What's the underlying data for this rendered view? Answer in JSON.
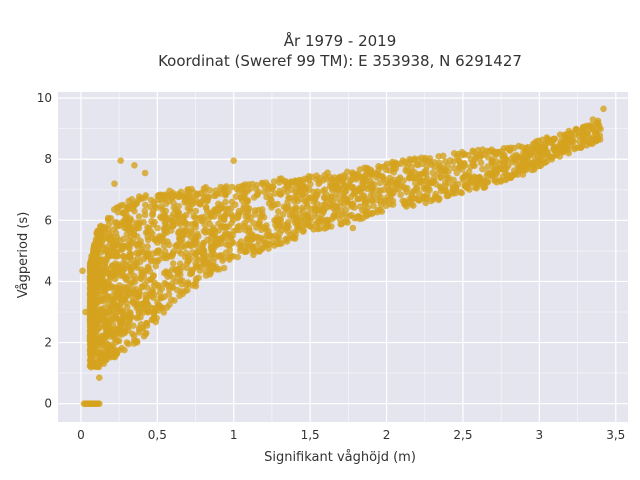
{
  "chart_data": {
    "type": "scatter",
    "title": "År 1979 - 2019",
    "subtitle": "Koordinat (Sweref 99 TM): E 353938, N 6291427",
    "xlabel": "Signifikant våghöjd (m)",
    "ylabel": "Vågperiod (s)",
    "xlim": [
      -0.15,
      3.58
    ],
    "ylim": [
      -0.6,
      10.2
    ],
    "x_ticks": [
      0,
      0.5,
      1,
      1.5,
      2,
      2.5,
      3,
      3.5
    ],
    "x_tick_labels": [
      "0",
      "0,5",
      "1",
      "1,5",
      "2",
      "2,5",
      "3",
      "3,5"
    ],
    "y_ticks": [
      0,
      2,
      4,
      6,
      8,
      10
    ],
    "y_tick_labels": [
      "0",
      "2",
      "4",
      "6",
      "8",
      "10"
    ],
    "grid": true,
    "legend": "none",
    "colors": {
      "background": "#e5e5ef",
      "marker": "#d4a31e",
      "grid": "#ffffff"
    },
    "point_cloud": {
      "envelope": [
        {
          "x": 0.06,
          "lower": 1.2,
          "upper": 4.6
        },
        {
          "x": 0.1,
          "lower": 1.1,
          "upper": 5.6
        },
        {
          "x": 0.2,
          "lower": 1.4,
          "upper": 6.4
        },
        {
          "x": 0.3,
          "lower": 1.8,
          "upper": 6.7
        },
        {
          "x": 0.4,
          "lower": 2.1,
          "upper": 6.8
        },
        {
          "x": 0.5,
          "lower": 2.7,
          "upper": 6.9
        },
        {
          "x": 0.6,
          "lower": 3.3,
          "upper": 7.0
        },
        {
          "x": 0.8,
          "lower": 4.0,
          "upper": 7.1
        },
        {
          "x": 1.0,
          "lower": 4.6,
          "upper": 7.2
        },
        {
          "x": 1.2,
          "lower": 5.0,
          "upper": 7.3
        },
        {
          "x": 1.5,
          "lower": 5.6,
          "upper": 7.5
        },
        {
          "x": 1.8,
          "lower": 6.0,
          "upper": 7.7
        },
        {
          "x": 2.0,
          "lower": 6.3,
          "upper": 7.9
        },
        {
          "x": 2.3,
          "lower": 6.6,
          "upper": 8.1
        },
        {
          "x": 2.6,
          "lower": 7.0,
          "upper": 8.3
        },
        {
          "x": 2.9,
          "lower": 7.5,
          "upper": 8.5
        },
        {
          "x": 3.1,
          "lower": 8.0,
          "upper": 8.8
        },
        {
          "x": 3.4,
          "lower": 8.6,
          "upper": 9.3
        }
      ],
      "zero_period_x_range": [
        0.02,
        0.12
      ],
      "outliers": [
        {
          "x": 0.26,
          "y": 7.95
        },
        {
          "x": 1.0,
          "y": 7.95
        },
        {
          "x": 0.35,
          "y": 7.8
        },
        {
          "x": 0.42,
          "y": 7.55
        },
        {
          "x": 0.22,
          "y": 7.2
        },
        {
          "x": 3.42,
          "y": 9.65
        },
        {
          "x": 3.35,
          "y": 9.3
        },
        {
          "x": 0.01,
          "y": 4.35
        },
        {
          "x": 0.03,
          "y": 3.0
        },
        {
          "x": 1.78,
          "y": 5.75
        },
        {
          "x": 0.12,
          "y": 0.85
        },
        {
          "x": 2.15,
          "y": 8.0
        }
      ]
    }
  }
}
